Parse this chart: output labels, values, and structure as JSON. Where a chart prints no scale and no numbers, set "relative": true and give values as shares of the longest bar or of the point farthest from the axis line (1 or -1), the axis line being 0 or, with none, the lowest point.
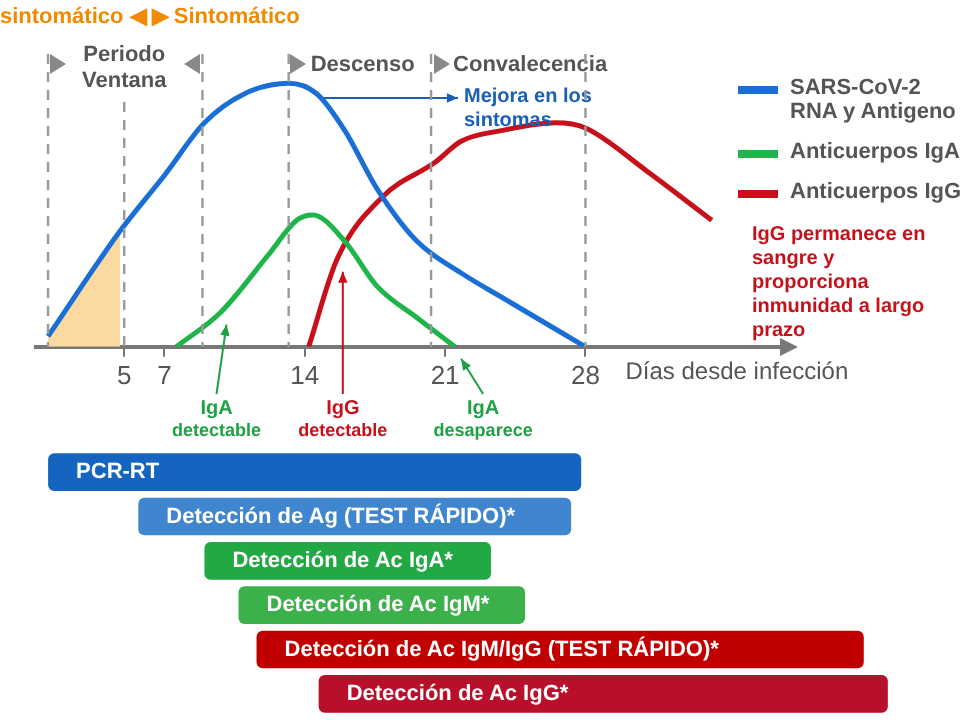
{
  "chart_data": [
    {
      "type": "line",
      "relative": true,
      "xlabel": "Días desde infección",
      "xlim": [
        0.6,
        37.7
      ],
      "xticks": [
        5,
        7,
        14,
        21,
        28
      ],
      "tick_labels": "x",
      "grid": false,
      "legend": "right",
      "marker": "none",
      "line_style": "solid",
      "series": [
        {
          "name": "SARS-CoV-2 RNA y Antigeno",
          "color": "#1a6fd6",
          "x": [
            1.2,
            4.8,
            7,
            9,
            11,
            13.2,
            14.6,
            16,
            17.6,
            19.6,
            21.8,
            24,
            28
          ],
          "values": [
            0.04,
            0.44,
            0.65,
            0.85,
            0.96,
            1,
            0.96,
            0.82,
            0.6,
            0.4,
            0.28,
            0.18,
            0
          ]
        },
        {
          "name": "Anticuerpos IgA",
          "color": "#1fb54a",
          "x": [
            7.6,
            9.8,
            12.2,
            13.6,
            14.4,
            16,
            17.6,
            19.6,
            21.5
          ],
          "values": [
            0,
            0.13,
            0.35,
            0.48,
            0.5,
            0.4,
            0.23,
            0.11,
            0
          ]
        },
        {
          "name": "Anticuerpos IgG",
          "color": "#c8101a",
          "x": [
            14.2,
            15.6,
            17.9,
            20.5,
            21.8,
            23.8,
            26.5,
            28,
            31,
            34.3
          ],
          "values": [
            0,
            0.33,
            0.57,
            0.7,
            0.78,
            0.82,
            0.85,
            0.83,
            0.67,
            0.48
          ]
        },
        {
          "type": "area",
          "color": "#fcd9a0",
          "x": [
            1.2,
            4.8
          ],
          "values": [
            0.04,
            0.44
          ]
        }
      ],
      "ref_lines": [
        {
          "axis": "x",
          "value": 1.2,
          "line_style": "dashed"
        },
        {
          "axis": "x",
          "value": 5,
          "label": "Periodo Ventana",
          "line_style": "dashed"
        },
        {
          "axis": "x",
          "value": 8.9,
          "line_style": "dashed"
        },
        {
          "axis": "x",
          "value": 13.2,
          "label": "Descenso",
          "line_style": "dashed"
        },
        {
          "axis": "x",
          "value": 20.3,
          "label": "Convalecencia",
          "line_style": "dashed"
        },
        {
          "axis": "x",
          "value": 28,
          "line_style": "dashed"
        }
      ],
      "annotations": [
        "sintomático ◀ ▶ Sintomático",
        "Mejora en los sintomas",
        {
          "text": "IgA detectable",
          "x": 9.8,
          "y": 0.13
        },
        {
          "text": "IgG detectable",
          "x": 15.6,
          "y": 0.33
        },
        {
          "text": "IgA desaparece",
          "x": 21.5,
          "y": 0
        },
        "IgG permanece en sangre y proporciona inmunidad a largo prazo"
      ]
    },
    {
      "type": "bar",
      "orientation": "horizontal",
      "xlim": [
        -1.2,
        47.2
      ],
      "xticks": [
        5,
        7,
        14,
        21,
        28
      ],
      "tick_labels": false,
      "grid": false,
      "categories": [
        "PCR-RT",
        "Detección de Ag (TEST RÁPIDO)*",
        "Detección de Ac IgA*",
        "Detección de Ac IgM*",
        "Detección de Ac IgM/IgG (TEST RÁPIDO)*",
        "Detección de Ac IgG*"
      ],
      "base": [
        1.2,
        5.7,
        9,
        10.7,
        11.6,
        14.7
      ],
      "values": [
        26.6,
        21.6,
        14.3,
        14.3,
        30.3,
        28.4
      ],
      "colors": [
        "#1565c0",
        "#3f86cf",
        "#22a844",
        "#3cb04a",
        "#c00000",
        "#b8102a"
      ]
    }
  ]
}
